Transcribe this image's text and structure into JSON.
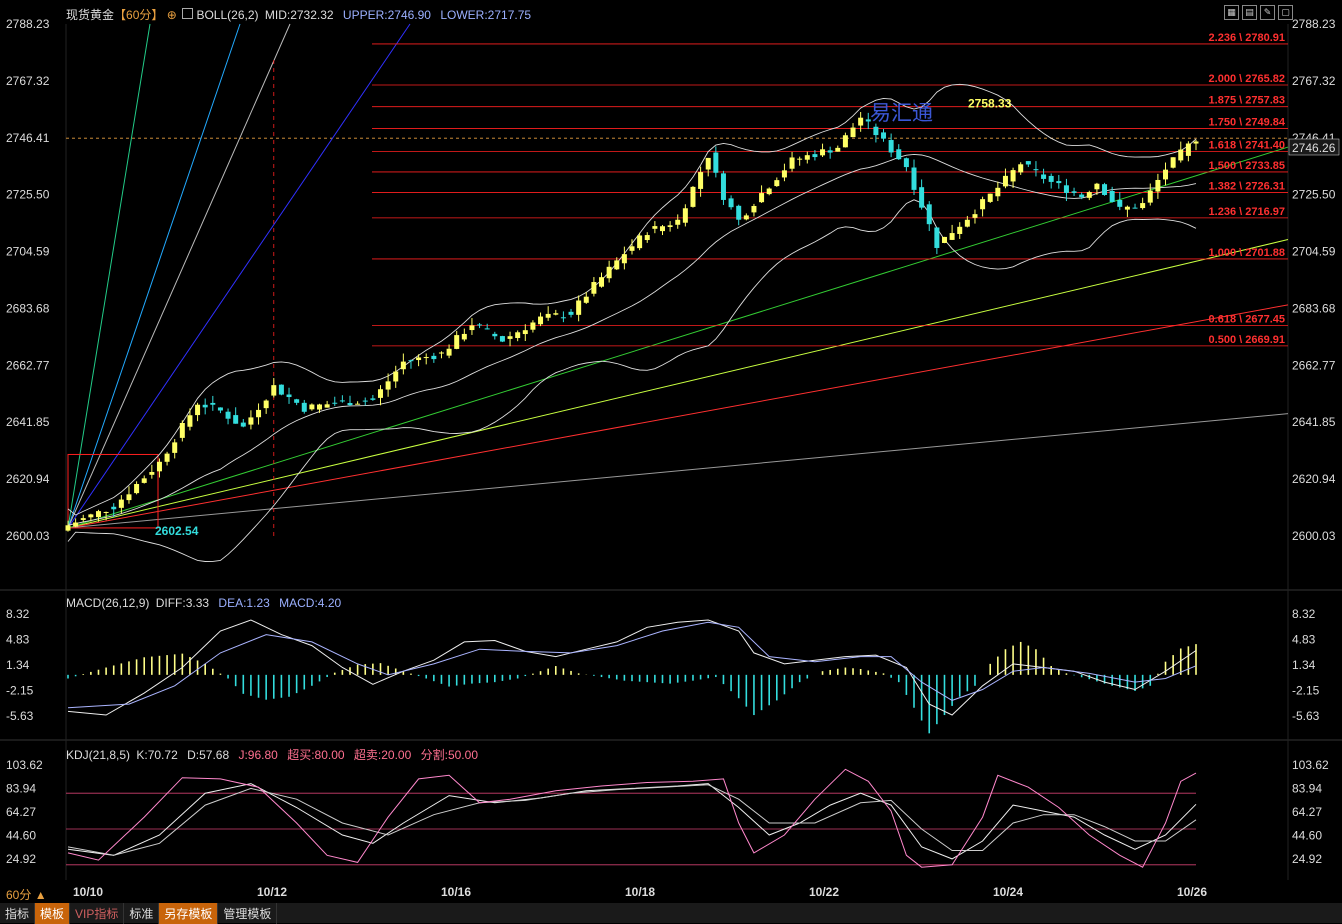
{
  "header": {
    "symbol": "现货黄金",
    "period_tag": "【60分】",
    "indicator": "BOLL(26,2)",
    "mid": "MID:2732.32",
    "upper": "UPPER:2746.90",
    "lower": "LOWER:2717.75"
  },
  "macd_header": {
    "name": "MACD(26,12,9)",
    "diff": "DIFF:3.33",
    "dea": "DEA:1.23",
    "macd": "MACD:4.20"
  },
  "kdj_header": {
    "name": "KDJ(21,8,5)",
    "k": "K:70.72",
    "d": "D:57.68",
    "j": "J:96.80",
    "overbought": "超买:80.00",
    "oversold": "超卖:20.00",
    "split": "分割:50.00"
  },
  "watermark": "易汇通",
  "current_price": "2746.26",
  "period_label": "60分",
  "bottom_tabs": [
    "指标",
    "模板",
    "VIP指标",
    "标准",
    "另存模板",
    "管理模板"
  ],
  "colors": {
    "up": "#ffff66",
    "down": "#33dddd",
    "fib": "#ff2020",
    "boll": "#ddd"
  },
  "chart_data": [
    {
      "type": "candlestick",
      "title": "现货黄金 60分",
      "x_labels": [
        "10/10",
        "10/12",
        "10/16",
        "10/18",
        "10/22",
        "10/24",
        "10/26"
      ],
      "y_ticks": [
        2788.23,
        2767.32,
        2746.41,
        2725.5,
        2704.59,
        2683.68,
        2662.77,
        2641.85,
        2620.94,
        2600.03
      ],
      "ylim": [
        2600.03,
        2788.23
      ],
      "close_path": [
        [
          0,
          2604
        ],
        [
          6,
          2611
        ],
        [
          12,
          2627
        ],
        [
          17,
          2649
        ],
        [
          20,
          2646
        ],
        [
          23,
          2640
        ],
        [
          27,
          2655
        ],
        [
          31,
          2647
        ],
        [
          35,
          2649
        ],
        [
          40,
          2650
        ],
        [
          44,
          2664
        ],
        [
          49,
          2667
        ],
        [
          53,
          2678
        ],
        [
          57,
          2672
        ],
        [
          62,
          2680
        ],
        [
          66,
          2682
        ],
        [
          69,
          2692
        ],
        [
          73,
          2704
        ],
        [
          76,
          2712
        ],
        [
          80,
          2716
        ],
        [
          84,
          2740
        ],
        [
          86,
          2725
        ],
        [
          88,
          2716
        ],
        [
          91,
          2726
        ],
        [
          95,
          2738
        ],
        [
          101,
          2743
        ],
        [
          104,
          2754
        ],
        [
          110,
          2736
        ],
        [
          114,
          2707
        ],
        [
          118,
          2717
        ],
        [
          122,
          2728
        ],
        [
          125,
          2737
        ],
        [
          129,
          2730
        ],
        [
          133,
          2725
        ],
        [
          135,
          2730
        ],
        [
          138,
          2720
        ],
        [
          141,
          2722
        ],
        [
          144,
          2735
        ],
        [
          148,
          2746.26
        ]
      ],
      "annotations": [
        {
          "label": "2758.33",
          "type": "high"
        },
        {
          "label": "2602.54",
          "type": "low"
        }
      ],
      "fib_levels": [
        {
          "ratio": "2.236",
          "price": 2780.91,
          "label": "2.236 \\ 2780.91"
        },
        {
          "ratio": "2.000",
          "price": 2765.82,
          "label": "2.000 \\ 2765.82"
        },
        {
          "ratio": "1.875",
          "price": 2757.83,
          "label": "1.875 \\ 2757.83"
        },
        {
          "ratio": "1.750",
          "price": 2749.84,
          "label": "1.750 \\ 2749.84"
        },
        {
          "ratio": "1.618",
          "price": 2741.4,
          "label": "1.618 \\ 2741.40"
        },
        {
          "ratio": "1.500",
          "price": 2733.85,
          "label": "1.500 \\ 2733.85"
        },
        {
          "ratio": "1.382",
          "price": 2726.31,
          "label": "1.382 \\ 2726.31"
        },
        {
          "ratio": "1.236",
          "price": 2716.97,
          "label": "1.236 \\ 2716.97"
        },
        {
          "ratio": "1.000",
          "price": 2701.88,
          "label": "1.000 \\ 2701.88"
        },
        {
          "ratio": "0.618",
          "price": 2677.45,
          "label": "0.618 \\ 2677.45"
        },
        {
          "ratio": "0.500",
          "price": 2669.91,
          "label": "0.500 \\ 2669.91"
        }
      ],
      "boll": {
        "mid": 2732.32,
        "upper": 2746.9,
        "lower": 2717.75
      }
    },
    {
      "type": "bar",
      "title": "MACD(26,12,9)",
      "y_ticks": [
        8.32,
        4.83,
        1.34,
        -2.15,
        -5.63
      ],
      "ylim": [
        -5.63,
        8.32
      ],
      "macd_hist": [
        [
          0,
          -0.5
        ],
        [
          5,
          1.0
        ],
        [
          10,
          2.4
        ],
        [
          15,
          2.9
        ],
        [
          18,
          1.5
        ],
        [
          21,
          -0.5
        ],
        [
          23,
          -2.6
        ],
        [
          26,
          -3.4
        ],
        [
          29,
          -3.0
        ],
        [
          32,
          -1.5
        ],
        [
          35,
          0.3
        ],
        [
          38,
          1.4
        ],
        [
          41,
          1.6
        ],
        [
          44,
          0.5
        ],
        [
          47,
          -0.5
        ],
        [
          50,
          -1.6
        ],
        [
          53,
          -1.2
        ],
        [
          56,
          -1.0
        ],
        [
          59,
          -0.5
        ],
        [
          62,
          0.5
        ],
        [
          64,
          1.2
        ],
        [
          67,
          0.2
        ],
        [
          70,
          -0.3
        ],
        [
          73,
          -0.8
        ],
        [
          76,
          -1.0
        ],
        [
          79,
          -1.2
        ],
        [
          82,
          -0.8
        ],
        [
          85,
          -0.3
        ],
        [
          88,
          -3.2
        ],
        [
          90,
          -5.5
        ],
        [
          93,
          -3.5
        ],
        [
          96,
          -1.0
        ],
        [
          99,
          0.5
        ],
        [
          102,
          1.0
        ],
        [
          104,
          0.8
        ],
        [
          107,
          0.2
        ],
        [
          109,
          -1.0
        ],
        [
          111,
          -4.5
        ],
        [
          113,
          -8.0
        ],
        [
          115,
          -5.5
        ],
        [
          117,
          -3.0
        ],
        [
          119,
          -1.5
        ],
        [
          121,
          1.5
        ],
        [
          123,
          3.5
        ],
        [
          125,
          4.5
        ],
        [
          127,
          3.5
        ],
        [
          129,
          1.2
        ],
        [
          131,
          0.2
        ],
        [
          134,
          -0.6
        ],
        [
          137,
          -1.5
        ],
        [
          140,
          -2.2
        ],
        [
          142,
          -1.5
        ],
        [
          144,
          1.8
        ],
        [
          146,
          3.6
        ],
        [
          148,
          4.2
        ]
      ],
      "diff": [
        [
          0,
          -5.0
        ],
        [
          5,
          -5.5
        ],
        [
          10,
          -2.5
        ],
        [
          15,
          1.0
        ],
        [
          20,
          6.0
        ],
        [
          24,
          7.5
        ],
        [
          28,
          5.5
        ],
        [
          32,
          4.0
        ],
        [
          36,
          1.0
        ],
        [
          40,
          -1.3
        ],
        [
          44,
          0.5
        ],
        [
          48,
          2.0
        ],
        [
          52,
          4.5
        ],
        [
          56,
          4.7
        ],
        [
          60,
          3.2
        ],
        [
          64,
          2.5
        ],
        [
          68,
          3.5
        ],
        [
          72,
          4.5
        ],
        [
          76,
          6.5
        ],
        [
          80,
          7.2
        ],
        [
          84,
          7.5
        ],
        [
          88,
          6.0
        ],
        [
          90,
          3.0
        ],
        [
          94,
          1.5
        ],
        [
          98,
          2.0
        ],
        [
          102,
          2.5
        ],
        [
          106,
          2.7
        ],
        [
          110,
          1.0
        ],
        [
          113,
          -4.0
        ],
        [
          116,
          -5.5
        ],
        [
          120,
          -1.5
        ],
        [
          124,
          1.5
        ],
        [
          128,
          1.0
        ],
        [
          132,
          0.5
        ],
        [
          136,
          -1.0
        ],
        [
          140,
          -2.0
        ],
        [
          144,
          0.5
        ],
        [
          148,
          3.33
        ]
      ],
      "dea": [
        [
          0,
          -4.5
        ],
        [
          8,
          -4.0
        ],
        [
          14,
          -1.5
        ],
        [
          20,
          3.0
        ],
        [
          26,
          5.5
        ],
        [
          32,
          4.5
        ],
        [
          38,
          1.5
        ],
        [
          42,
          0.0
        ],
        [
          48,
          1.5
        ],
        [
          54,
          3.5
        ],
        [
          60,
          3.2
        ],
        [
          66,
          3.0
        ],
        [
          72,
          4.0
        ],
        [
          78,
          6.0
        ],
        [
          84,
          7.2
        ],
        [
          88,
          6.5
        ],
        [
          92,
          2.5
        ],
        [
          98,
          1.8
        ],
        [
          104,
          2.5
        ],
        [
          108,
          2.5
        ],
        [
          112,
          -1.0
        ],
        [
          116,
          -3.5
        ],
        [
          120,
          -2.0
        ],
        [
          124,
          0.5
        ],
        [
          128,
          1.0
        ],
        [
          134,
          0.2
        ],
        [
          140,
          -1.0
        ],
        [
          144,
          -0.5
        ],
        [
          148,
          1.23
        ]
      ]
    },
    {
      "type": "line",
      "title": "KDJ(21,8,5)",
      "y_ticks": [
        103.62,
        83.94,
        64.27,
        44.6,
        24.92
      ],
      "ylim": [
        14.0,
        103.62
      ],
      "levels": {
        "overbought": 80.0,
        "oversold": 20.0,
        "split": 50.0
      },
      "k": [
        [
          0,
          33
        ],
        [
          6,
          28
        ],
        [
          12,
          45
        ],
        [
          18,
          80
        ],
        [
          24,
          88
        ],
        [
          30,
          68
        ],
        [
          36,
          45
        ],
        [
          40,
          38
        ],
        [
          44,
          55
        ],
        [
          50,
          78
        ],
        [
          56,
          72
        ],
        [
          62,
          76
        ],
        [
          68,
          82
        ],
        [
          74,
          84
        ],
        [
          80,
          86
        ],
        [
          84,
          88
        ],
        [
          88,
          68
        ],
        [
          92,
          45
        ],
        [
          96,
          55
        ],
        [
          100,
          70
        ],
        [
          104,
          80
        ],
        [
          108,
          70
        ],
        [
          112,
          35
        ],
        [
          116,
          25
        ],
        [
          120,
          40
        ],
        [
          124,
          70
        ],
        [
          128,
          65
        ],
        [
          132,
          60
        ],
        [
          136,
          45
        ],
        [
          140,
          33
        ],
        [
          144,
          45
        ],
        [
          148,
          70.72
        ]
      ],
      "d": [
        [
          0,
          35
        ],
        [
          6,
          28
        ],
        [
          12,
          38
        ],
        [
          18,
          70
        ],
        [
          24,
          84
        ],
        [
          30,
          75
        ],
        [
          36,
          55
        ],
        [
          42,
          45
        ],
        [
          48,
          62
        ],
        [
          54,
          72
        ],
        [
          60,
          74
        ],
        [
          66,
          80
        ],
        [
          72,
          83
        ],
        [
          78,
          85
        ],
        [
          84,
          87
        ],
        [
          88,
          75
        ],
        [
          92,
          55
        ],
        [
          98,
          55
        ],
        [
          104,
          72
        ],
        [
          108,
          74
        ],
        [
          112,
          50
        ],
        [
          116,
          32
        ],
        [
          120,
          32
        ],
        [
          124,
          55
        ],
        [
          128,
          62
        ],
        [
          132,
          62
        ],
        [
          136,
          52
        ],
        [
          140,
          40
        ],
        [
          144,
          40
        ],
        [
          148,
          57.68
        ]
      ],
      "j": [
        [
          0,
          30
        ],
        [
          4,
          24
        ],
        [
          10,
          60
        ],
        [
          15,
          93
        ],
        [
          20,
          92
        ],
        [
          25,
          85
        ],
        [
          30,
          55
        ],
        [
          34,
          28
        ],
        [
          38,
          22
        ],
        [
          42,
          60
        ],
        [
          46,
          92
        ],
        [
          50,
          95
        ],
        [
          54,
          72
        ],
        [
          58,
          75
        ],
        [
          64,
          82
        ],
        [
          70,
          86
        ],
        [
          76,
          89
        ],
        [
          82,
          90
        ],
        [
          86,
          92
        ],
        [
          88,
          55
        ],
        [
          90,
          30
        ],
        [
          94,
          45
        ],
        [
          98,
          75
        ],
        [
          102,
          100
        ],
        [
          105,
          90
        ],
        [
          108,
          65
        ],
        [
          110,
          28
        ],
        [
          112,
          18
        ],
        [
          116,
          20
        ],
        [
          120,
          60
        ],
        [
          122,
          95
        ],
        [
          126,
          85
        ],
        [
          130,
          68
        ],
        [
          134,
          45
        ],
        [
          138,
          28
        ],
        [
          141,
          18
        ],
        [
          144,
          55
        ],
        [
          146,
          90
        ],
        [
          148,
          96.8
        ]
      ]
    }
  ]
}
